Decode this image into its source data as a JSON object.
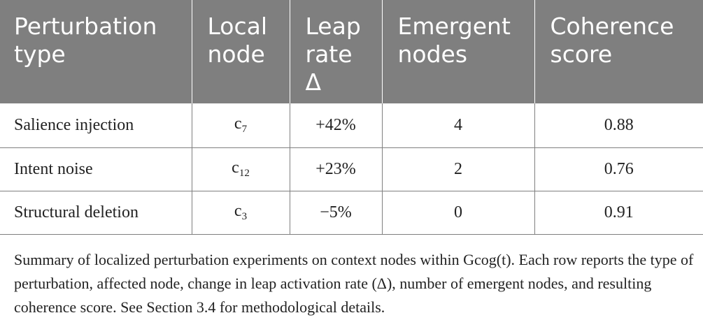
{
  "table": {
    "headers": [
      [
        "Perturbation",
        "type"
      ],
      [
        "Local",
        "node"
      ],
      [
        "Leap",
        "rate",
        "Δ"
      ],
      [
        "Emergent",
        "nodes"
      ],
      [
        "Coherence",
        "score"
      ]
    ],
    "rows": [
      {
        "type": "Salience injection",
        "node_base": "c",
        "node_sub": "7",
        "leap_rate": "+42%",
        "emergent": "4",
        "coherence": "0.88"
      },
      {
        "type": "Intent noise",
        "node_base": "c",
        "node_sub": "12",
        "leap_rate": "+23%",
        "emergent": "2",
        "coherence": "0.76"
      },
      {
        "type": "Structural deletion",
        "node_base": "c",
        "node_sub": "3",
        "leap_rate": "−5%",
        "emergent": "0",
        "coherence": "0.91"
      }
    ]
  },
  "caption": {
    "text": "Summary of localized perturbation experiments on context nodes within Gcog(t). Each row reports the type of perturbation, affected node, change in leap activation rate (Δ), number of emergent nodes, and resulting coherence score. See Section 3.4 for methodological details."
  }
}
